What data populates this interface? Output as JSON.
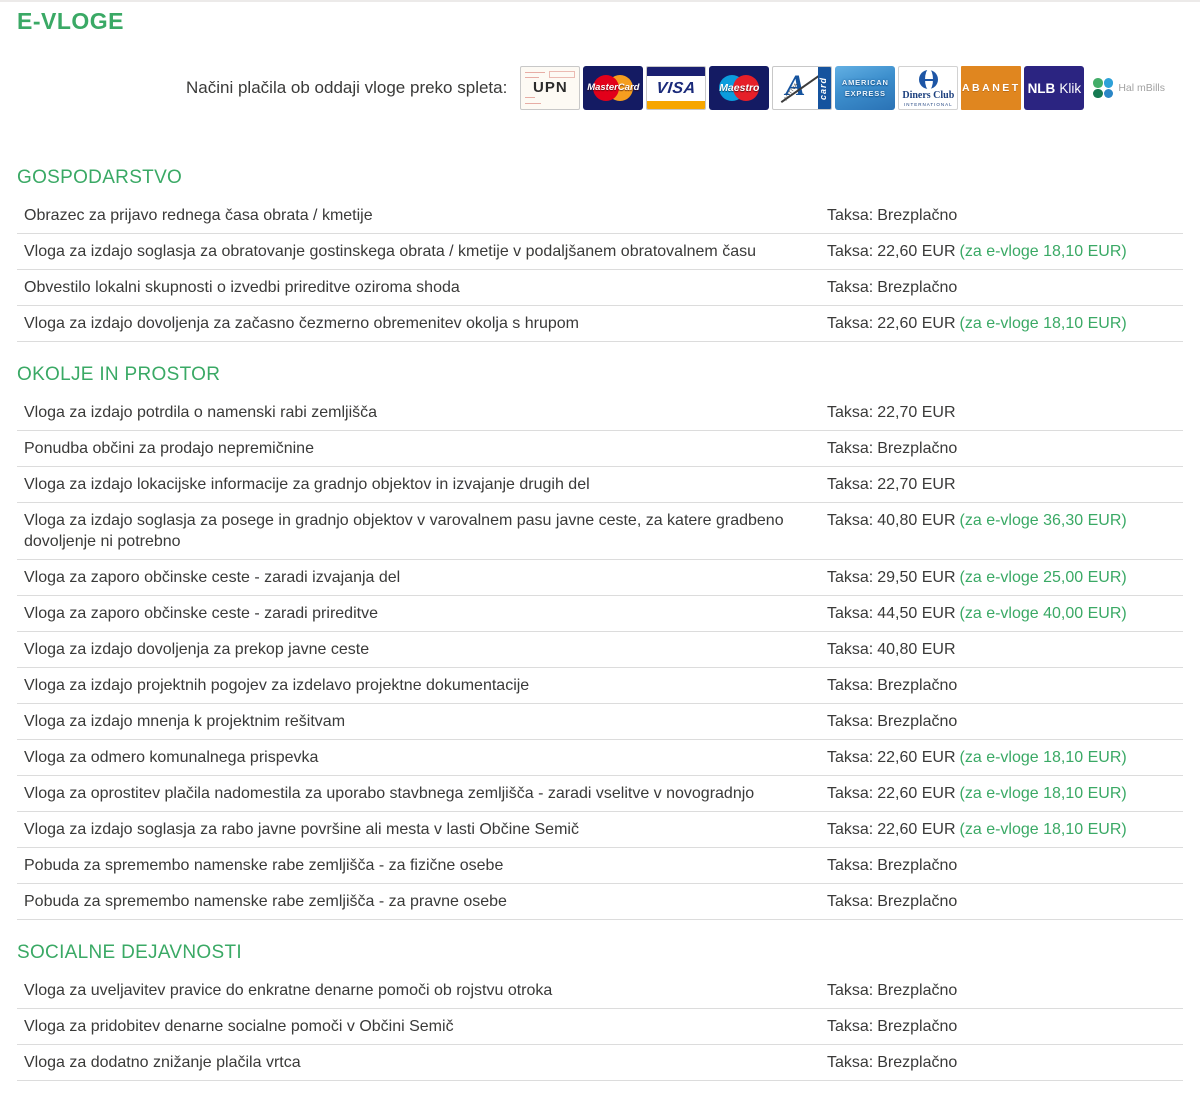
{
  "page": {
    "title": "E-VLOGE"
  },
  "payments": {
    "label": "Načini plačila ob oddaji vloge preko spleta:",
    "cards": {
      "upn": "UPN",
      "mastercard": "MasterCard",
      "visa": "VISA",
      "maestro": "Maestro",
      "activa_small": "ACTIVA",
      "activa_card": "card",
      "amex_line1": "AMERICAN",
      "amex_line2": "EXPRESS",
      "diners_name": "Diners Club",
      "diners_sub": "INTERNATIONAL",
      "abanet": "ABANET",
      "nlb_bold": "NLB",
      "nlb_light": "Klik",
      "halmbills": "Hal mBills",
      "activa_letter": "A"
    }
  },
  "fee_label": "Taksa:",
  "colors": {
    "accent_green": "#3aa965",
    "text_dark": "#3a3a39",
    "row_border": "#dcdcdc",
    "abanet_orange": "#e0861f",
    "nlb_indigo": "#2b2481",
    "card_navy": "#141b63"
  },
  "sections": [
    {
      "heading": "GOSPODARSTVO",
      "rows": [
        {
          "title": "Obrazec za prijavo rednega časa obrata / kmetije",
          "fee": "Brezplačno",
          "evloge": null
        },
        {
          "title": "Vloga za izdajo soglasja za obratovanje gostinskega obrata / kmetije v podaljšanem obratovalnem času",
          "fee": "22,60 EUR",
          "evloge": "(za e-vloge 18,10 EUR)"
        },
        {
          "title": "Obvestilo lokalni skupnosti o izvedbi prireditve oziroma shoda",
          "fee": "Brezplačno",
          "evloge": null
        },
        {
          "title": "Vloga za izdajo dovoljenja za začasno čezmerno obremenitev okolja s hrupom",
          "fee": "22,60 EUR",
          "evloge": "(za e-vloge 18,10 EUR)"
        }
      ]
    },
    {
      "heading": "OKOLJE IN PROSTOR",
      "rows": [
        {
          "title": "Vloga za izdajo potrdila o namenski rabi zemljišča",
          "fee": "22,70 EUR",
          "evloge": null
        },
        {
          "title": "Ponudba občini za prodajo nepremičnine",
          "fee": "Brezplačno",
          "evloge": null
        },
        {
          "title": "Vloga za izdajo lokacijske informacije za gradnjo objektov in izvajanje drugih del",
          "fee": "22,70 EUR",
          "evloge": null
        },
        {
          "title": "Vloga za izdajo soglasja za posege in gradnjo objektov v varovalnem pasu javne ceste, za katere gradbeno dovoljenje ni potrebno",
          "fee": "40,80 EUR",
          "evloge": "(za e-vloge 36,30 EUR)"
        },
        {
          "title": "Vloga za zaporo občinske ceste - zaradi izvajanja del",
          "fee": "29,50 EUR",
          "evloge": "(za e-vloge 25,00 EUR)"
        },
        {
          "title": "Vloga za zaporo občinske ceste - zaradi prireditve",
          "fee": "44,50 EUR",
          "evloge": "(za e-vloge 40,00 EUR)"
        },
        {
          "title": "Vloga za izdajo dovoljenja za prekop javne ceste",
          "fee": "40,80 EUR",
          "evloge": null
        },
        {
          "title": "Vloga za izdajo projektnih pogojev za izdelavo projektne dokumentacije",
          "fee": "Brezplačno",
          "evloge": null
        },
        {
          "title": "Vloga za izdajo mnenja k projektnim rešitvam",
          "fee": "Brezplačno",
          "evloge": null
        },
        {
          "title": "Vloga za odmero komunalnega prispevka",
          "fee": "22,60 EUR",
          "evloge": "(za e-vloge 18,10 EUR)"
        },
        {
          "title": "Vloga za oprostitev plačila nadomestila za uporabo stavbnega zemljišča - zaradi vselitve v novogradnjo",
          "fee": "22,60 EUR",
          "evloge": "(za e-vloge 18,10 EUR)"
        },
        {
          "title": "Vloga za izdajo soglasja za rabo javne površine ali mesta v lasti Občine Semič",
          "fee": "22,60 EUR",
          "evloge": "(za e-vloge 18,10 EUR)"
        },
        {
          "title": "Pobuda za spremembo namenske rabe zemljišča - za fizične osebe",
          "fee": "Brezplačno",
          "evloge": null
        },
        {
          "title": "Pobuda za spremembo namenske rabe zemljišča - za pravne osebe",
          "fee": "Brezplačno",
          "evloge": null
        }
      ]
    },
    {
      "heading": "SOCIALNE DEJAVNOSTI",
      "rows": [
        {
          "title": "Vloga za uveljavitev pravice do enkratne denarne pomoči ob rojstvu otroka",
          "fee": "Brezplačno",
          "evloge": null
        },
        {
          "title": "Vloga za pridobitev denarne socialne pomoči v Občini Semič",
          "fee": "Brezplačno",
          "evloge": null
        },
        {
          "title": "Vloga za dodatno znižanje plačila vrtca",
          "fee": "Brezplačno",
          "evloge": null
        }
      ]
    }
  ]
}
